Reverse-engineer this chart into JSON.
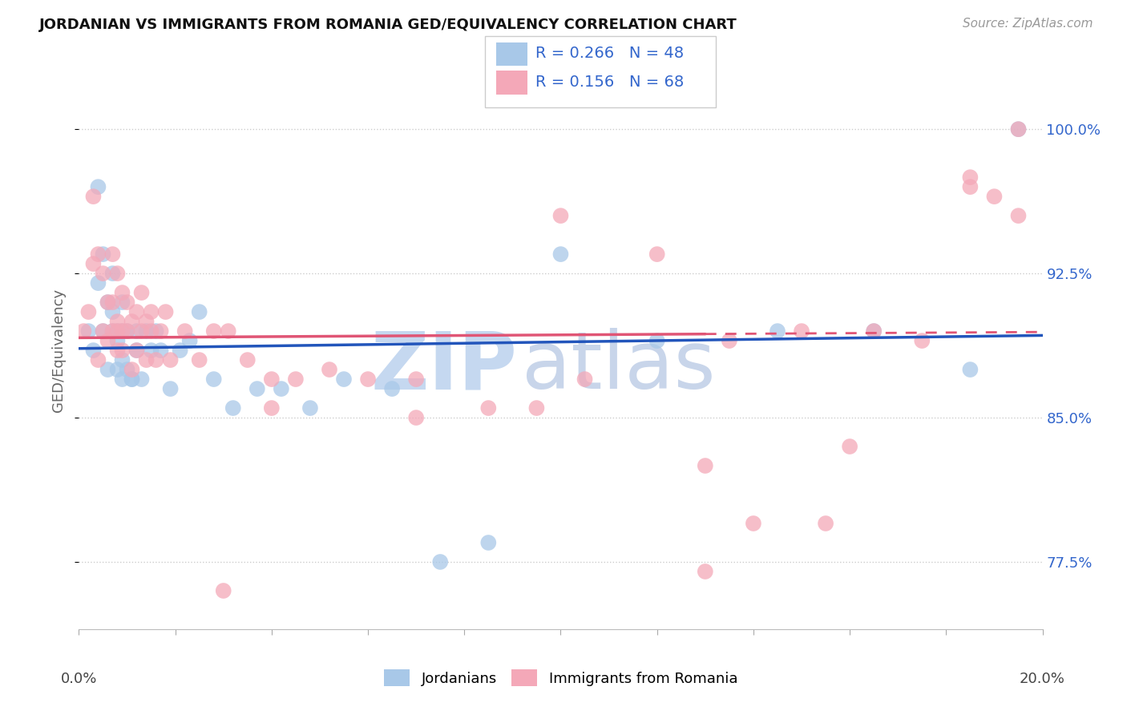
{
  "title": "JORDANIAN VS IMMIGRANTS FROM ROMANIA GED/EQUIVALENCY CORRELATION CHART",
  "source": "Source: ZipAtlas.com",
  "ylabel": "GED/Equivalency",
  "ytick_labels": [
    "77.5%",
    "85.0%",
    "92.5%",
    "100.0%"
  ],
  "ytick_values": [
    0.775,
    0.85,
    0.925,
    1.0
  ],
  "xlim": [
    0.0,
    0.2
  ],
  "ylim": [
    0.74,
    1.03
  ],
  "legend_blue_r": "0.266",
  "legend_blue_n": "48",
  "legend_pink_r": "0.156",
  "legend_pink_n": "68",
  "blue_color": "#a8c8e8",
  "pink_color": "#f4a8b8",
  "blue_line_color": "#2255bb",
  "pink_line_color": "#e05575",
  "tick_color": "#3366cc",
  "watermark_zip_color": "#c5d8f0",
  "watermark_atlas_color": "#c8d5ea",
  "blue_points_x": [
    0.002,
    0.003,
    0.004,
    0.004,
    0.005,
    0.005,
    0.006,
    0.006,
    0.007,
    0.007,
    0.007,
    0.008,
    0.008,
    0.008,
    0.009,
    0.009,
    0.009,
    0.009,
    0.01,
    0.01,
    0.011,
    0.011,
    0.012,
    0.012,
    0.013,
    0.014,
    0.015,
    0.016,
    0.017,
    0.019,
    0.021,
    0.023,
    0.025,
    0.028,
    0.032,
    0.037,
    0.042,
    0.048,
    0.055,
    0.065,
    0.075,
    0.085,
    0.1,
    0.12,
    0.145,
    0.165,
    0.185,
    0.195
  ],
  "blue_points_y": [
    0.895,
    0.885,
    0.97,
    0.92,
    0.935,
    0.895,
    0.875,
    0.91,
    0.895,
    0.925,
    0.905,
    0.89,
    0.875,
    0.895,
    0.87,
    0.895,
    0.91,
    0.88,
    0.875,
    0.895,
    0.87,
    0.87,
    0.885,
    0.895,
    0.87,
    0.895,
    0.885,
    0.895,
    0.885,
    0.865,
    0.885,
    0.89,
    0.905,
    0.87,
    0.855,
    0.865,
    0.865,
    0.855,
    0.87,
    0.865,
    0.775,
    0.785,
    0.935,
    0.89,
    0.895,
    0.895,
    0.875,
    1.0
  ],
  "pink_points_x": [
    0.001,
    0.002,
    0.003,
    0.003,
    0.004,
    0.004,
    0.005,
    0.005,
    0.006,
    0.006,
    0.007,
    0.007,
    0.007,
    0.008,
    0.008,
    0.008,
    0.008,
    0.009,
    0.009,
    0.009,
    0.01,
    0.01,
    0.011,
    0.011,
    0.012,
    0.012,
    0.013,
    0.013,
    0.014,
    0.014,
    0.015,
    0.015,
    0.016,
    0.017,
    0.018,
    0.019,
    0.022,
    0.025,
    0.028,
    0.031,
    0.035,
    0.04,
    0.045,
    0.052,
    0.06,
    0.07,
    0.085,
    0.1,
    0.12,
    0.135,
    0.15,
    0.16,
    0.175,
    0.185,
    0.19,
    0.195,
    0.13,
    0.155,
    0.03,
    0.07,
    0.13,
    0.095,
    0.04,
    0.105,
    0.14,
    0.165,
    0.185,
    0.195
  ],
  "pink_points_y": [
    0.895,
    0.905,
    0.965,
    0.93,
    0.88,
    0.935,
    0.925,
    0.895,
    0.91,
    0.89,
    0.935,
    0.91,
    0.895,
    0.925,
    0.9,
    0.885,
    0.895,
    0.915,
    0.885,
    0.895,
    0.91,
    0.895,
    0.9,
    0.875,
    0.905,
    0.885,
    0.895,
    0.915,
    0.9,
    0.88,
    0.895,
    0.905,
    0.88,
    0.895,
    0.905,
    0.88,
    0.895,
    0.88,
    0.895,
    0.895,
    0.88,
    0.87,
    0.87,
    0.875,
    0.87,
    0.85,
    0.855,
    0.955,
    0.935,
    0.89,
    0.895,
    0.835,
    0.89,
    0.97,
    0.965,
    0.955,
    0.77,
    0.795,
    0.76,
    0.87,
    0.825,
    0.855,
    0.855,
    0.87,
    0.795,
    0.895,
    0.975,
    1.0
  ]
}
